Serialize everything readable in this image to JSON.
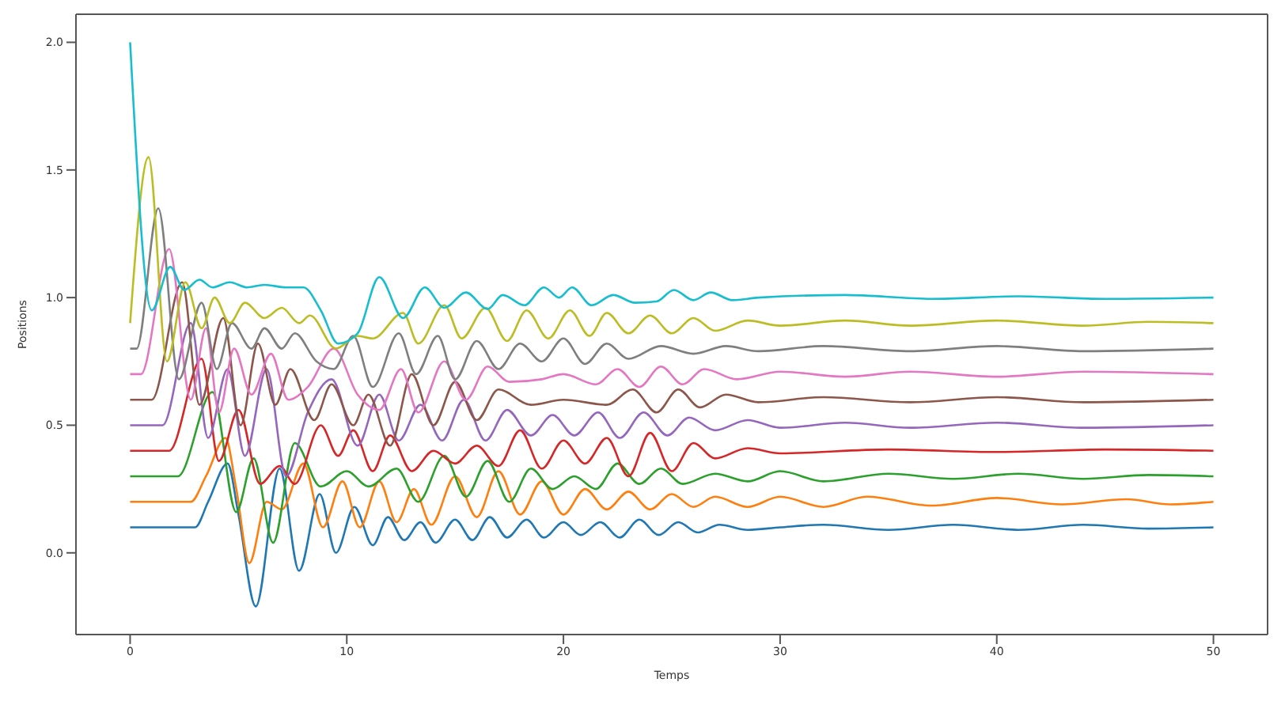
{
  "chart_data": {
    "type": "line",
    "xlabel": "Temps",
    "ylabel": "Positions",
    "xlim": [
      -2.5,
      52.5
    ],
    "ylim": [
      -0.32,
      2.11
    ],
    "xticks": [
      0,
      10,
      20,
      30,
      40,
      50
    ],
    "yticks": [
      {
        "value": 0,
        "label": "0.0"
      },
      {
        "value": 0.5,
        "label": "0.5"
      },
      {
        "value": 1,
        "label": "1.0"
      },
      {
        "value": 1.5,
        "label": "1.5"
      },
      {
        "value": 2,
        "label": "2.0"
      }
    ],
    "series": [
      {
        "color": "#1f77b4",
        "x": [
          0,
          3,
          3.6,
          4.5,
          5.0,
          5.8,
          6.9,
          7.8,
          8.75,
          9.5,
          10.35,
          11.2,
          11.9,
          12.65,
          13.4,
          14.1,
          15,
          15.8,
          16.6,
          17.4,
          18.3,
          19.1,
          20,
          20.8,
          21.7,
          22.6,
          23.5,
          24.4,
          25.3,
          26.2,
          27.2,
          28.5,
          30,
          32,
          35,
          38,
          41,
          44,
          47,
          50
        ],
        "values": [
          0.1,
          0.1,
          0.2,
          0.35,
          0.15,
          -0.21,
          0.33,
          -0.07,
          0.23,
          0.0,
          0.18,
          0.03,
          0.14,
          0.05,
          0.12,
          0.04,
          0.13,
          0.05,
          0.14,
          0.06,
          0.13,
          0.06,
          0.12,
          0.07,
          0.12,
          0.06,
          0.13,
          0.07,
          0.12,
          0.08,
          0.11,
          0.09,
          0.1,
          0.11,
          0.09,
          0.11,
          0.09,
          0.11,
          0.095,
          0.1
        ]
      },
      {
        "color": "#ff7f0e",
        "x": [
          0,
          2.8,
          3.5,
          4.4,
          4.9,
          5.5,
          6.3,
          7.0,
          8.0,
          8.9,
          9.8,
          10.6,
          11.5,
          12.3,
          13.1,
          13.9,
          15,
          16,
          17,
          18,
          19,
          20,
          21,
          22,
          23,
          24,
          25,
          26,
          27,
          28.5,
          30,
          32,
          34,
          37,
          40,
          43,
          46,
          48,
          50
        ],
        "values": [
          0.2,
          0.2,
          0.3,
          0.45,
          0.25,
          -0.04,
          0.2,
          0.17,
          0.35,
          0.1,
          0.28,
          0.1,
          0.28,
          0.12,
          0.25,
          0.11,
          0.3,
          0.14,
          0.32,
          0.15,
          0.28,
          0.15,
          0.25,
          0.17,
          0.24,
          0.17,
          0.23,
          0.18,
          0.22,
          0.18,
          0.22,
          0.18,
          0.22,
          0.185,
          0.215,
          0.19,
          0.21,
          0.19,
          0.2
        ]
      },
      {
        "color": "#2ca02c",
        "x": [
          0,
          2.2,
          3.8,
          4.9,
          5.7,
          6.6,
          7.6,
          8.8,
          10,
          11,
          12.3,
          13.3,
          14.5,
          15.5,
          16.5,
          17.5,
          18.5,
          19.5,
          20.5,
          21.5,
          22.5,
          23.5,
          24.5,
          25.5,
          27,
          28.5,
          30,
          32,
          35,
          38,
          41,
          44,
          47,
          50
        ],
        "values": [
          0.3,
          0.3,
          0.63,
          0.16,
          0.37,
          0.04,
          0.43,
          0.26,
          0.32,
          0.26,
          0.33,
          0.2,
          0.38,
          0.22,
          0.36,
          0.2,
          0.33,
          0.25,
          0.3,
          0.25,
          0.35,
          0.27,
          0.33,
          0.27,
          0.31,
          0.28,
          0.32,
          0.28,
          0.31,
          0.29,
          0.31,
          0.29,
          0.305,
          0.3
        ]
      },
      {
        "color": "#d62728",
        "x": [
          0,
          1.8,
          3.3,
          4.1,
          5.0,
          6.0,
          6.9,
          7.6,
          8.8,
          9.6,
          10.3,
          11.2,
          12,
          13,
          14,
          15,
          16,
          17,
          18,
          19,
          20,
          21,
          22,
          23,
          24,
          25,
          26,
          27,
          28.5,
          30,
          35,
          40,
          45,
          50
        ],
        "values": [
          0.4,
          0.4,
          0.76,
          0.36,
          0.56,
          0.27,
          0.34,
          0.27,
          0.5,
          0.38,
          0.48,
          0.32,
          0.46,
          0.32,
          0.4,
          0.35,
          0.42,
          0.34,
          0.48,
          0.33,
          0.44,
          0.35,
          0.45,
          0.3,
          0.47,
          0.32,
          0.43,
          0.37,
          0.41,
          0.39,
          0.405,
          0.395,
          0.405,
          0.4
        ]
      },
      {
        "color": "#9467bd",
        "x": [
          0,
          1.5,
          2.8,
          3.6,
          4.5,
          5.3,
          6.3,
          7.2,
          8.2,
          9.3,
          10.5,
          11.5,
          12.4,
          13.4,
          14.4,
          15.4,
          16.4,
          17.4,
          18.5,
          19.5,
          20.5,
          21.6,
          22.6,
          23.7,
          24.8,
          25.8,
          27,
          28.5,
          30,
          33,
          36,
          40,
          44,
          50
        ],
        "values": [
          0.5,
          0.5,
          0.9,
          0.45,
          0.72,
          0.38,
          0.72,
          0.3,
          0.55,
          0.68,
          0.42,
          0.62,
          0.44,
          0.58,
          0.44,
          0.6,
          0.44,
          0.56,
          0.46,
          0.54,
          0.46,
          0.55,
          0.45,
          0.55,
          0.46,
          0.53,
          0.48,
          0.52,
          0.49,
          0.51,
          0.49,
          0.51,
          0.49,
          0.5
        ]
      },
      {
        "color": "#8c564b",
        "x": [
          0,
          1.0,
          2.4,
          3.2,
          4.3,
          5.1,
          5.9,
          6.7,
          7.4,
          8.5,
          9.3,
          10.3,
          11,
          12,
          13,
          14,
          15,
          16,
          17,
          18.5,
          20,
          22,
          23.2,
          24.3,
          25.3,
          26.3,
          27.5,
          29,
          32,
          36,
          40,
          44,
          50
        ],
        "values": [
          0.6,
          0.6,
          1.06,
          0.58,
          0.92,
          0.5,
          0.82,
          0.58,
          0.72,
          0.52,
          0.66,
          0.5,
          0.62,
          0.42,
          0.7,
          0.5,
          0.67,
          0.52,
          0.64,
          0.58,
          0.6,
          0.58,
          0.64,
          0.55,
          0.64,
          0.57,
          0.62,
          0.59,
          0.61,
          0.59,
          0.61,
          0.59,
          0.6
        ]
      },
      {
        "color": "#e377c2",
        "x": [
          0,
          0.5,
          1.8,
          2.8,
          3.5,
          4.1,
          4.8,
          5.6,
          6.5,
          7.3,
          8.2,
          9.4,
          10.5,
          11.5,
          12.5,
          13.3,
          14.5,
          15.5,
          16.5,
          17.5,
          19,
          20,
          21.5,
          22.5,
          23.5,
          24.5,
          25.5,
          26.5,
          28,
          30,
          33,
          36,
          40,
          44,
          50
        ],
        "values": [
          0.7,
          0.7,
          1.19,
          0.6,
          0.88,
          0.55,
          0.8,
          0.62,
          0.78,
          0.6,
          0.65,
          0.8,
          0.62,
          0.56,
          0.72,
          0.55,
          0.75,
          0.6,
          0.73,
          0.67,
          0.68,
          0.7,
          0.66,
          0.72,
          0.65,
          0.73,
          0.66,
          0.72,
          0.68,
          0.71,
          0.69,
          0.71,
          0.69,
          0.71,
          0.7
        ]
      },
      {
        "color": "#7f7f7f",
        "x": [
          0,
          0.3,
          1.3,
          2.25,
          3.3,
          4,
          4.7,
          5.6,
          6.2,
          7.0,
          7.6,
          8.6,
          9.4,
          10.3,
          11.2,
          12.4,
          13.2,
          14.2,
          15,
          16,
          17,
          18,
          19,
          20,
          21,
          22,
          23,
          24.5,
          26,
          27.5,
          29,
          32,
          36,
          40,
          44,
          50
        ],
        "values": [
          0.8,
          0.8,
          1.35,
          0.68,
          0.98,
          0.72,
          0.9,
          0.8,
          0.88,
          0.8,
          0.86,
          0.75,
          0.72,
          0.85,
          0.65,
          0.86,
          0.7,
          0.85,
          0.68,
          0.83,
          0.72,
          0.82,
          0.75,
          0.84,
          0.74,
          0.82,
          0.76,
          0.81,
          0.78,
          0.81,
          0.79,
          0.81,
          0.79,
          0.81,
          0.79,
          0.8
        ]
      },
      {
        "color": "#bcbd22",
        "x": [
          0,
          0.85,
          1.7,
          2.55,
          3.3,
          3.9,
          4.6,
          5.3,
          6.2,
          7,
          7.8,
          8.3,
          9.5,
          10.5,
          11.2,
          12.6,
          13.3,
          14.5,
          15.3,
          16.4,
          17.4,
          18.3,
          19.3,
          20.3,
          21.2,
          22,
          23,
          24,
          25,
          26,
          27,
          28.5,
          30,
          33,
          36,
          40,
          44,
          47,
          50
        ],
        "values": [
          0.9,
          1.55,
          0.75,
          1.06,
          0.88,
          1.0,
          0.9,
          0.98,
          0.92,
          0.96,
          0.9,
          0.93,
          0.8,
          0.85,
          0.84,
          0.94,
          0.82,
          0.97,
          0.84,
          0.96,
          0.83,
          0.95,
          0.84,
          0.95,
          0.85,
          0.94,
          0.86,
          0.93,
          0.86,
          0.92,
          0.87,
          0.91,
          0.89,
          0.91,
          0.89,
          0.91,
          0.89,
          0.905,
          0.9
        ]
      },
      {
        "color": "#17becf",
        "x": [
          0,
          1.0,
          1.85,
          2.5,
          3.2,
          3.8,
          4.6,
          5.4,
          6.2,
          7.2,
          8,
          8.8,
          9.6,
          10.5,
          11.5,
          12.6,
          13.6,
          14.5,
          15.5,
          16.5,
          17.2,
          18.2,
          19.1,
          19.8,
          20.4,
          21.3,
          22.3,
          23.3,
          24.3,
          25.1,
          26,
          26.8,
          27.8,
          29,
          33,
          37,
          41,
          45,
          50
        ],
        "values": [
          2.0,
          0.95,
          1.12,
          1.03,
          1.07,
          1.04,
          1.06,
          1.04,
          1.05,
          1.04,
          1.04,
          0.95,
          0.82,
          0.86,
          1.08,
          0.92,
          1.04,
          0.96,
          1.02,
          0.955,
          1.01,
          0.97,
          1.04,
          1.0,
          1.04,
          0.97,
          1.01,
          0.98,
          0.985,
          1.03,
          0.99,
          1.02,
          0.99,
          1.0,
          1.01,
          0.995,
          1.005,
          0.995,
          1.0
        ]
      }
    ]
  }
}
